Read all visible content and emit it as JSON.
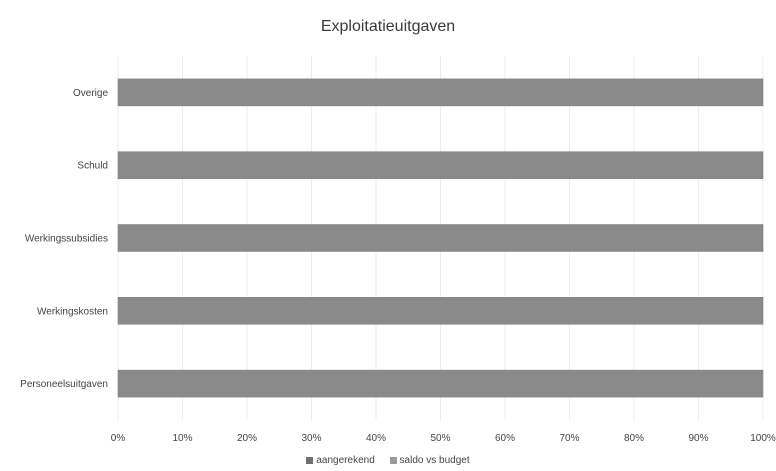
{
  "chart_data": {
    "type": "bar",
    "orientation": "horizontal",
    "stacked": "percent",
    "title": "Exploitatieuitgaven",
    "categories": [
      "Overige",
      "Schuld",
      "Werkingssubsidies",
      "Werkingskosten",
      "Personeelsuitgaven"
    ],
    "series": [
      {
        "name": "aangerekend",
        "values": [
          100,
          100,
          99.9,
          99.9,
          99.8
        ],
        "color": "#8a8a8a"
      },
      {
        "name": "saldo vs budget",
        "values": [
          0,
          0,
          0.1,
          0.1,
          0.2
        ],
        "color": "#9a9a9a"
      }
    ],
    "xlim": [
      0,
      100
    ],
    "x_ticks": [
      "0%",
      "10%",
      "20%",
      "30%",
      "40%",
      "50%",
      "60%",
      "70%",
      "80%",
      "90%",
      "100%"
    ],
    "grid": true,
    "legend_position": "bottom"
  }
}
